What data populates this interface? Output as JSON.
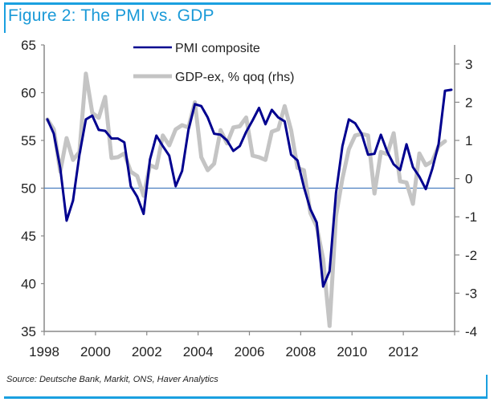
{
  "title": "Figure 2: The PMI vs. GDP",
  "source": "Source: Deutsche Bank, Markit, ONS, Haver Analytics",
  "colors": {
    "frame": "#1aa0e0",
    "title": "#1a9ad8",
    "pmi": "#00008f",
    "gdp": "#c4c4c4",
    "reference": "#4a7fc0",
    "axis": "#888888"
  },
  "chart_data": {
    "type": "line",
    "title": "Figure 2: The PMI vs. GDP",
    "xlabel": "",
    "ylabel_left": "",
    "ylabel_right": "",
    "x_start": "1998Q1",
    "x_frequency": "quarterly",
    "x_ticks": [
      1998,
      2000,
      2002,
      2004,
      2006,
      2008,
      2010,
      2012
    ],
    "x_tick_labels": [
      "1998",
      "2000",
      "2002",
      "2004",
      "2006",
      "2008",
      "2010",
      "2012"
    ],
    "xlim": [
      1998,
      2014
    ],
    "ylim_left": [
      35,
      65
    ],
    "y_ticks_left": [
      35,
      40,
      45,
      50,
      55,
      60,
      65
    ],
    "y_tick_labels_left": [
      "35",
      "40",
      "45",
      "50",
      "55",
      "60",
      "65"
    ],
    "ylim_right": [
      -4,
      3.5
    ],
    "y_ticks_right": [
      -4,
      -3,
      -2,
      -1,
      0,
      1,
      2,
      3
    ],
    "y_tick_labels_right": [
      "-4",
      "-3",
      "-2",
      "-1",
      "0",
      "1",
      "2",
      "3"
    ],
    "reference_line_left": 50,
    "grid": false,
    "legend_position": "top-center",
    "series": [
      {
        "name": "PMI composite",
        "axis": "left",
        "start": "1998Q1",
        "values": [
          57.2,
          55.7,
          52.1,
          46.6,
          48.7,
          53.5,
          57.2,
          57.6,
          56.1,
          56.0,
          55.2,
          55.2,
          54.8,
          50.2,
          49.1,
          47.3,
          53.0,
          55.5,
          54.4,
          53.4,
          50.2,
          51.8,
          56.1,
          58.8,
          58.6,
          57.4,
          55.7,
          55.6,
          55.0,
          53.9,
          54.4,
          55.9,
          57.1,
          58.4,
          56.7,
          58.2,
          57.4,
          57.0,
          53.5,
          52.9,
          50.1,
          47.8,
          46.4,
          39.7,
          41.3,
          49.5,
          54.4,
          57.2,
          56.8,
          55.7,
          53.5,
          53.6,
          55.6,
          53.8,
          52.5,
          51.9,
          54.6,
          52.2,
          51.2,
          49.9,
          52.0,
          54.6,
          60.2,
          60.3
        ]
      },
      {
        "name": "GDP-ex, % qoq (rhs)",
        "axis": "right",
        "start": "1998Q1",
        "values": [
          1.55,
          1.29,
          0.18,
          1.06,
          0.49,
          0.7,
          2.75,
          1.72,
          1.59,
          2.14,
          0.54,
          0.56,
          0.66,
          0.18,
          0.07,
          -0.45,
          0.35,
          0.28,
          1.13,
          0.87,
          1.29,
          1.4,
          1.34,
          2.0,
          0.56,
          0.22,
          0.39,
          1.27,
          0.92,
          1.34,
          1.37,
          1.6,
          0.6,
          0.56,
          0.49,
          1.23,
          1.29,
          1.9,
          1.27,
          0.28,
          0.22,
          -0.9,
          -1.26,
          -2.1,
          -3.86,
          -0.98,
          0.0,
          0.77,
          1.13,
          1.17,
          1.13,
          -0.39,
          0.7,
          0.64,
          1.19,
          -0.07,
          -0.1,
          -0.66,
          0.66,
          0.35,
          0.45,
          0.85,
          0.98
        ]
      }
    ]
  }
}
